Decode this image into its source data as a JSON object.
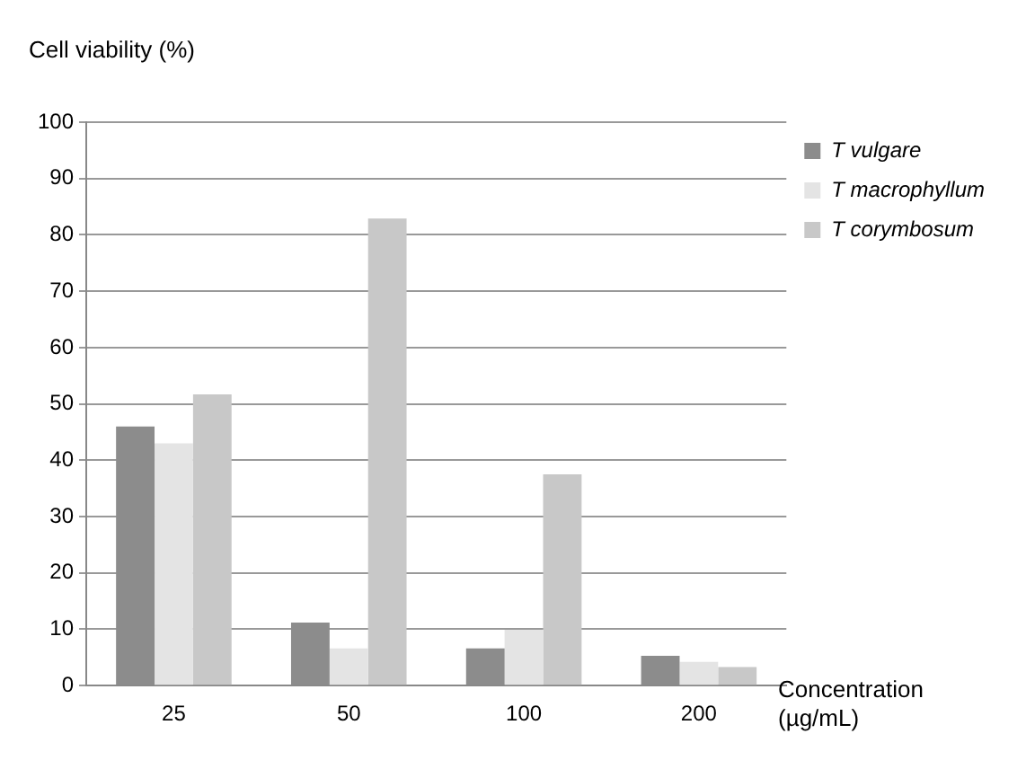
{
  "chart_data": {
    "type": "bar",
    "ylabel": "Cell viability (%)",
    "xlabel": "Concentration (µg/mL)",
    "categories": [
      "25",
      "50",
      "100",
      "200"
    ],
    "series": [
      {
        "name": "T vulgare",
        "color": "#8c8c8c",
        "values": [
          46,
          11.2,
          6.6,
          5.3
        ]
      },
      {
        "name": "T macrophyllum",
        "color": "#e4e4e4",
        "values": [
          43,
          6.6,
          9.9,
          4.2
        ]
      },
      {
        "name": "T corymbosum",
        "color": "#c8c8c8",
        "values": [
          51.7,
          82.9,
          37.5,
          3.3
        ]
      }
    ],
    "ylim": [
      0,
      100
    ],
    "yticks": [
      0,
      10,
      20,
      30,
      40,
      50,
      60,
      70,
      80,
      90,
      100
    ],
    "grid": "y",
    "legend": "top right"
  }
}
